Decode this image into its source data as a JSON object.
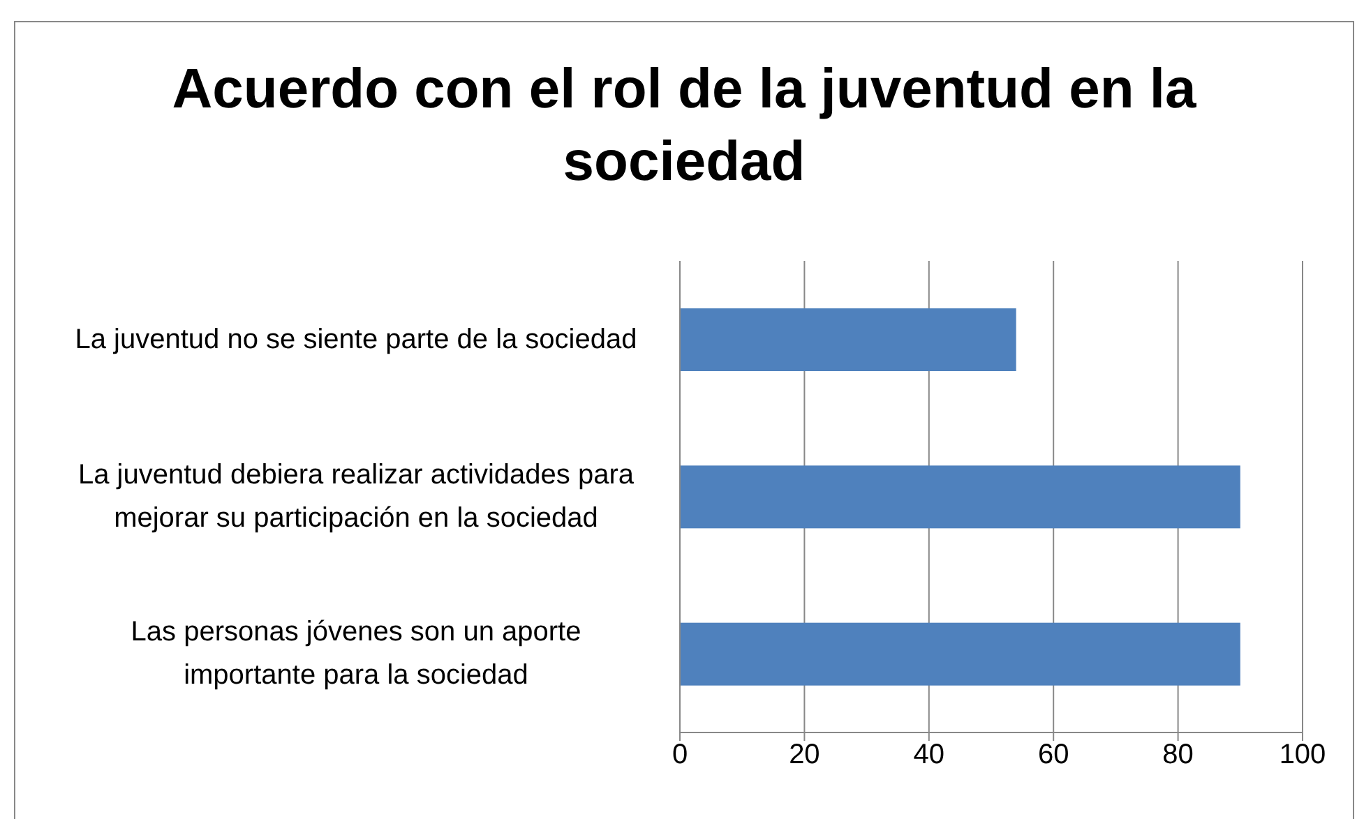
{
  "chart_data": {
    "type": "bar",
    "orientation": "horizontal",
    "title": "Acuerdo con el rol de la juventud en la sociedad",
    "categories": [
      "La juventud no se siente parte de la sociedad",
      "La juventud debiera realizar actividades para mejorar su participación en la sociedad",
      "Las personas jóvenes son un aporte importante para la sociedad"
    ],
    "values": [
      54,
      90,
      90
    ],
    "color": "#4f81bd",
    "xlim": [
      0,
      100
    ],
    "xticks": [
      0,
      20,
      40,
      60,
      80,
      100
    ],
    "grid": "x",
    "legend": false
  }
}
